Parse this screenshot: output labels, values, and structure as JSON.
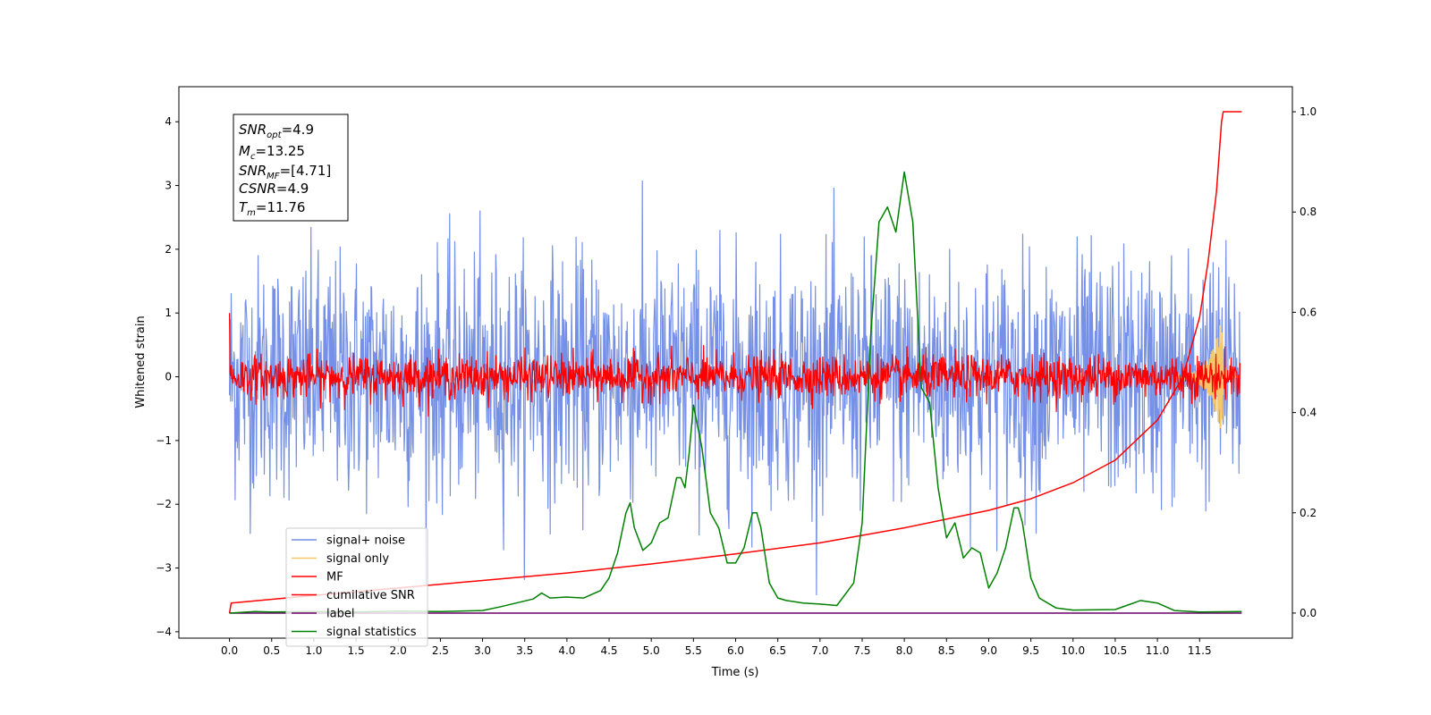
{
  "chart_data": {
    "type": "line",
    "xlabel": "Time (s)",
    "ylabel": "Whitened strain",
    "xlim": [
      -0.6,
      12.6
    ],
    "ylim_left": [
      -4.1,
      4.55
    ],
    "ylim_right": [
      -0.05,
      1.05
    ],
    "x_ticks": [
      "0.0",
      "0.5",
      "1.0",
      "1.5",
      "2.0",
      "2.5",
      "3.0",
      "3.5",
      "4.0",
      "4.5",
      "5.0",
      "5.5",
      "6.0",
      "6.5",
      "7.0",
      "7.5",
      "8.0",
      "8.5",
      "9.0",
      "9.5",
      "10.0",
      "10.5",
      "11.0",
      "11.5"
    ],
    "y_ticks_left": [
      "4",
      "3",
      "2",
      "1",
      "0",
      "−1",
      "−2",
      "−3",
      "−4"
    ],
    "y_ticks_right": [
      "1.0",
      "0.8",
      "0.6",
      "0.4",
      "0.2",
      "0.0"
    ],
    "grid": false,
    "legend_position": "lower-left",
    "annotation": {
      "snr_opt": {
        "base": "SNR",
        "sub": "opt",
        "value": "=4.9"
      },
      "mc": {
        "base": "M",
        "sub": "c",
        "value": "=13.25"
      },
      "snr_mf": {
        "base": "SNR",
        "sub": "MF",
        "value": "=[4.71]"
      },
      "csnr": {
        "base": "CSNR",
        "sub": "",
        "value": "=4.9"
      },
      "tm": {
        "base": "T",
        "sub": "m",
        "value": "=11.76"
      }
    },
    "series": [
      {
        "name": "signal+ noise",
        "color": "#7590e6",
        "axis": "left",
        "kind": "noise",
        "amplitude": 1.25,
        "peak_min": -3.42,
        "peak_max": 4.18,
        "x_range": [
          0.0,
          11.98
        ]
      },
      {
        "name": "signal only",
        "color": "#f5c76a",
        "axis": "left",
        "kind": "chirp",
        "x_range": [
          11.2,
          11.98
        ]
      },
      {
        "name": "MF",
        "color": "#ff0000",
        "axis": "left",
        "kind": "noise",
        "amplitude": 0.22,
        "x_range": [
          0.0,
          11.98
        ]
      },
      {
        "name": "cumilative SNR",
        "color": "#ff0000",
        "axis": "right",
        "x": [
          0.0,
          0.02,
          1.0,
          2.0,
          3.0,
          4.0,
          5.0,
          6.0,
          7.0,
          8.0,
          9.0,
          9.5,
          10.0,
          10.5,
          11.0,
          11.3,
          11.5,
          11.6,
          11.7,
          11.76,
          11.78,
          12.0
        ],
        "y": [
          0.0,
          0.02,
          0.035,
          0.05,
          0.065,
          0.08,
          0.098,
          0.118,
          0.14,
          0.17,
          0.205,
          0.228,
          0.26,
          0.305,
          0.385,
          0.47,
          0.59,
          0.7,
          0.84,
          0.98,
          1.0,
          1.0
        ]
      },
      {
        "name": "label",
        "color": "#6a006a",
        "axis": "right",
        "x": [
          0.0,
          12.0
        ],
        "y": [
          0.0,
          0.0
        ]
      },
      {
        "name": "signal statistics",
        "color": "#008000",
        "axis": "right",
        "x": [
          0.0,
          0.3,
          0.5,
          1.0,
          1.5,
          2.0,
          2.5,
          3.0,
          3.2,
          3.4,
          3.6,
          3.7,
          3.8,
          4.0,
          4.2,
          4.4,
          4.5,
          4.6,
          4.7,
          4.75,
          4.8,
          4.9,
          5.0,
          5.1,
          5.2,
          5.3,
          5.35,
          5.4,
          5.45,
          5.5,
          5.6,
          5.7,
          5.8,
          5.9,
          6.0,
          6.1,
          6.2,
          6.25,
          6.3,
          6.4,
          6.5,
          6.6,
          6.8,
          7.0,
          7.2,
          7.4,
          7.5,
          7.6,
          7.7,
          7.8,
          7.9,
          8.0,
          8.1,
          8.2,
          8.3,
          8.4,
          8.5,
          8.6,
          8.7,
          8.8,
          8.9,
          9.0,
          9.1,
          9.2,
          9.3,
          9.35,
          9.4,
          9.5,
          9.6,
          9.8,
          10.0,
          10.5,
          10.8,
          11.0,
          11.2,
          11.5,
          12.0
        ],
        "y": [
          0.0,
          0.003,
          0.002,
          0.003,
          0.002,
          0.004,
          0.003,
          0.005,
          0.012,
          0.02,
          0.028,
          0.04,
          0.03,
          0.032,
          0.03,
          0.045,
          0.07,
          0.12,
          0.2,
          0.22,
          0.17,
          0.125,
          0.14,
          0.18,
          0.19,
          0.27,
          0.27,
          0.25,
          0.32,
          0.415,
          0.33,
          0.2,
          0.17,
          0.1,
          0.1,
          0.13,
          0.2,
          0.2,
          0.17,
          0.06,
          0.03,
          0.025,
          0.02,
          0.018,
          0.015,
          0.06,
          0.18,
          0.55,
          0.78,
          0.81,
          0.76,
          0.88,
          0.78,
          0.45,
          0.42,
          0.25,
          0.15,
          0.18,
          0.11,
          0.13,
          0.12,
          0.05,
          0.08,
          0.13,
          0.21,
          0.21,
          0.18,
          0.07,
          0.03,
          0.01,
          0.006,
          0.007,
          0.025,
          0.02,
          0.005,
          0.002,
          0.003
        ]
      }
    ]
  }
}
